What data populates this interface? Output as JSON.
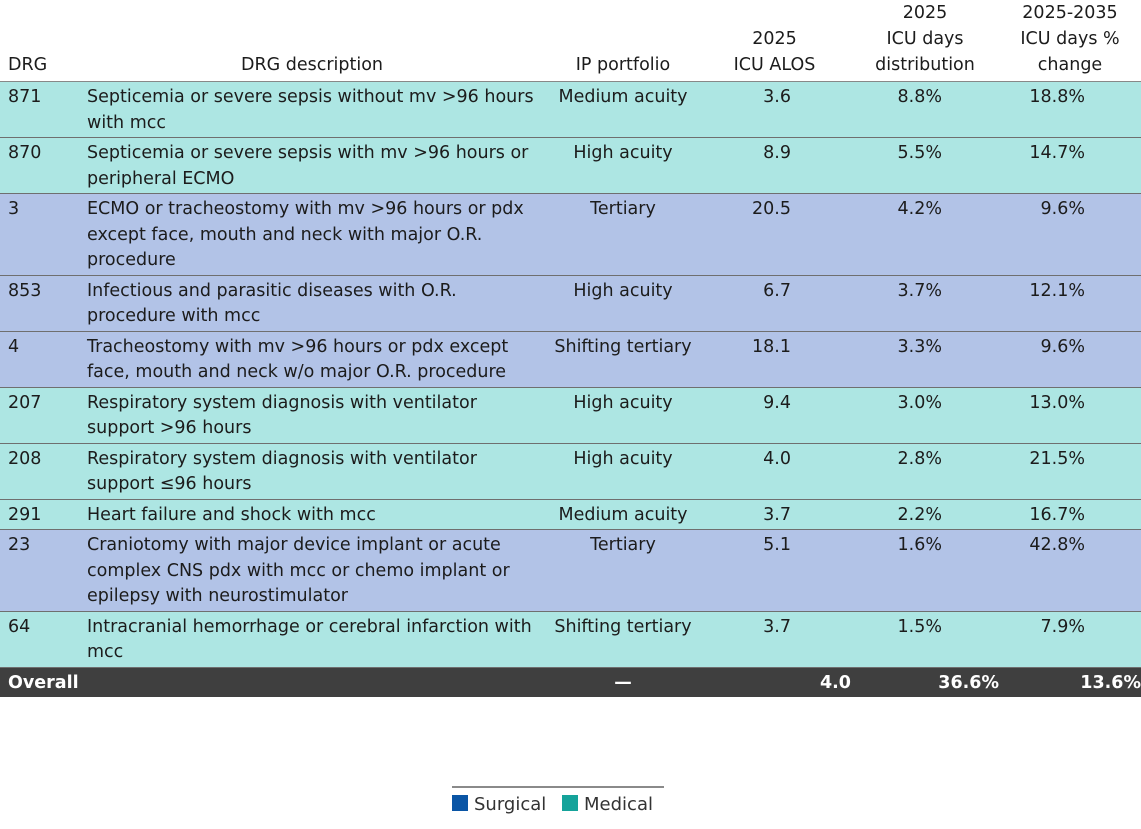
{
  "table": {
    "headers": {
      "drg": "DRG",
      "description": "DRG description",
      "portfolio": "IP portfolio",
      "alos": [
        "2025",
        "ICU ALOS"
      ],
      "distribution": [
        "2025",
        "ICU days",
        "distribution"
      ],
      "change": [
        "2025-2035",
        "ICU days %",
        "change"
      ]
    },
    "rows": [
      {
        "type": "medical",
        "drg": "871",
        "description": "Septicemia or severe sepsis without mv >96 hours with mcc",
        "portfolio": "Medium acuity",
        "alos": "3.6",
        "distribution": "8.8%",
        "change": "18.8%"
      },
      {
        "type": "medical",
        "drg": "870",
        "description": "Septicemia or severe sepsis with mv >96 hours or peripheral ECMO",
        "portfolio": "High acuity",
        "alos": "8.9",
        "distribution": "5.5%",
        "change": "14.7%"
      },
      {
        "type": "surgical",
        "drg": "3",
        "description": "ECMO or tracheostomy with mv >96 hours or pdx except face, mouth and neck with major O.R. procedure",
        "portfolio": "Tertiary",
        "alos": "20.5",
        "distribution": "4.2%",
        "change": "9.6%"
      },
      {
        "type": "surgical",
        "drg": "853",
        "description": "Infectious and parasitic diseases with O.R. procedure with mcc",
        "portfolio": "High acuity",
        "alos": "6.7",
        "distribution": "3.7%",
        "change": "12.1%"
      },
      {
        "type": "surgical",
        "drg": "4",
        "description": "Tracheostomy with mv >96 hours or pdx except face, mouth and neck w/o major O.R. procedure",
        "portfolio": "Shifting tertiary",
        "alos": "18.1",
        "distribution": "3.3%",
        "change": "9.6%"
      },
      {
        "type": "medical",
        "drg": "207",
        "description": "Respiratory system diagnosis with ventilator support >96 hours",
        "portfolio": "High acuity",
        "alos": "9.4",
        "distribution": "3.0%",
        "change": "13.0%"
      },
      {
        "type": "medical",
        "drg": "208",
        "description": "Respiratory system diagnosis with ventilator support ≤96 hours",
        "portfolio": "High acuity",
        "alos": "4.0",
        "distribution": "2.8%",
        "change": "21.5%"
      },
      {
        "type": "medical",
        "drg": "291",
        "description": "Heart failure and shock with mcc",
        "portfolio": "Medium acuity",
        "alos": "3.7",
        "distribution": "2.2%",
        "change": "16.7%"
      },
      {
        "type": "surgical",
        "drg": "23",
        "description": "Craniotomy with major device implant or acute complex CNS pdx with mcc or chemo implant or epilepsy with neurostimulator",
        "portfolio": "Tertiary",
        "alos": "5.1",
        "distribution": "1.6%",
        "change": "42.8%"
      },
      {
        "type": "medical",
        "drg": "64",
        "description": "Intracranial hemorrhage or cerebral infarction with mcc",
        "portfolio": "Shifting tertiary",
        "alos": "3.7",
        "distribution": "1.5%",
        "change": "7.9%"
      }
    ],
    "overall": {
      "label": "Overall",
      "portfolio": "—",
      "alos": "4.0",
      "distribution": "36.6%",
      "change": "13.6%"
    }
  },
  "legend": {
    "items": [
      {
        "label": "Surgical",
        "color": "#0a55a5"
      },
      {
        "label": "Medical",
        "color": "#15a39a"
      }
    ]
  },
  "colors": {
    "medical_row": "#ade6e3",
    "surgical_row": "#b2c3e7",
    "overall_row": "#3f3f3f"
  }
}
